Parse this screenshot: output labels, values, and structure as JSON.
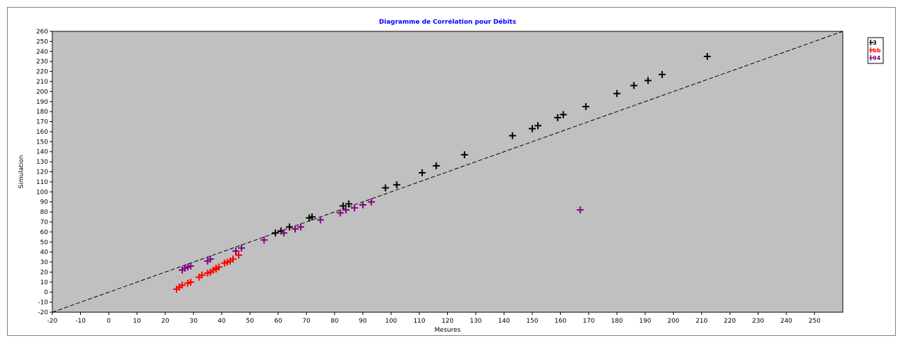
{
  "chart_data": {
    "type": "scatter",
    "title": "Diagramme de Corrélation pour Débits",
    "xlabel": "Mesures",
    "ylabel": "Simulation",
    "xlim": [
      -20,
      260
    ],
    "ylim": [
      -20,
      260
    ],
    "xticks": [
      -20,
      -10,
      0,
      10,
      20,
      30,
      40,
      50,
      60,
      70,
      80,
      90,
      100,
      110,
      120,
      130,
      140,
      150,
      160,
      170,
      180,
      190,
      200,
      210,
      220,
      230,
      240,
      250
    ],
    "yticks": [
      -20,
      -10,
      0,
      10,
      20,
      30,
      40,
      50,
      60,
      70,
      80,
      90,
      100,
      110,
      120,
      130,
      140,
      150,
      160,
      170,
      180,
      190,
      200,
      210,
      220,
      230,
      240,
      250,
      260
    ],
    "grid": false,
    "legend_position": "top-right, outside plot",
    "reference_line": {
      "type": "y=x",
      "style": "dashed",
      "color": "#000000"
    },
    "series": [
      {
        "name": "3",
        "color": "#000000",
        "marker": "cross",
        "points": [
          [
            59,
            59
          ],
          [
            61,
            61
          ],
          [
            64,
            65
          ],
          [
            71,
            74
          ],
          [
            72,
            75
          ],
          [
            83,
            86
          ],
          [
            85,
            88
          ],
          [
            98,
            104
          ],
          [
            102,
            107
          ],
          [
            111,
            119
          ],
          [
            116,
            126
          ],
          [
            126,
            137
          ],
          [
            143,
            156
          ],
          [
            150,
            163
          ],
          [
            152,
            166
          ],
          [
            159,
            174
          ],
          [
            161,
            177
          ],
          [
            169,
            185
          ],
          [
            180,
            198
          ],
          [
            186,
            206
          ],
          [
            191,
            211
          ],
          [
            196,
            217
          ],
          [
            212,
            235
          ]
        ]
      },
      {
        "name": "bb",
        "color": "#ff0000",
        "marker": "cross",
        "points": [
          [
            24,
            3
          ],
          [
            25,
            5
          ],
          [
            26,
            7
          ],
          [
            28,
            9
          ],
          [
            29,
            10
          ],
          [
            32,
            15
          ],
          [
            33,
            17
          ],
          [
            35,
            19
          ],
          [
            36,
            20
          ],
          [
            37,
            22
          ],
          [
            38,
            23
          ],
          [
            38,
            24
          ],
          [
            39,
            25
          ],
          [
            41,
            29
          ],
          [
            42,
            30
          ],
          [
            43,
            31
          ],
          [
            44,
            33
          ],
          [
            46,
            37
          ]
        ]
      },
      {
        "name": "94",
        "color": "#800080",
        "marker": "cross",
        "points": [
          [
            26,
            22
          ],
          [
            27,
            24
          ],
          [
            28,
            25
          ],
          [
            29,
            26
          ],
          [
            35,
            31
          ],
          [
            36,
            33
          ],
          [
            45,
            41
          ],
          [
            47,
            44
          ],
          [
            55,
            52
          ],
          [
            62,
            59
          ],
          [
            66,
            63
          ],
          [
            68,
            65
          ],
          [
            75,
            72
          ],
          [
            82,
            79
          ],
          [
            84,
            82
          ],
          [
            87,
            84
          ],
          [
            90,
            87
          ],
          [
            93,
            90
          ],
          [
            167,
            82
          ]
        ]
      }
    ]
  }
}
